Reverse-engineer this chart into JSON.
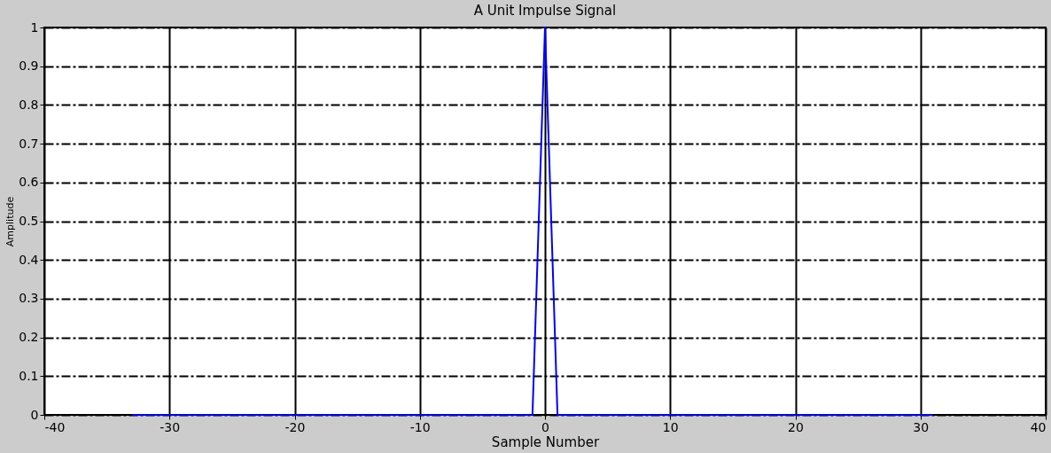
{
  "chart_data": {
    "type": "line",
    "title": "A Unit Impulse Signal",
    "xlabel": "Sample Number",
    "ylabel": "Amplitude",
    "x": [
      -33,
      -1,
      0,
      1,
      31
    ],
    "series": [
      {
        "color": "#0000ff",
        "values": [
          0,
          0,
          1,
          0,
          0
        ]
      }
    ],
    "xlim": [
      -40,
      40
    ],
    "xticks": [
      -40,
      -30,
      -20,
      -10,
      0,
      10,
      20,
      30,
      40
    ],
    "ylim": [
      0,
      1
    ],
    "yticks": [
      0,
      0.1,
      0.2,
      0.3,
      0.4,
      0.5,
      0.6,
      0.7,
      0.8,
      0.9,
      1
    ],
    "grid": true,
    "marker": "none",
    "line_style": "solid"
  }
}
